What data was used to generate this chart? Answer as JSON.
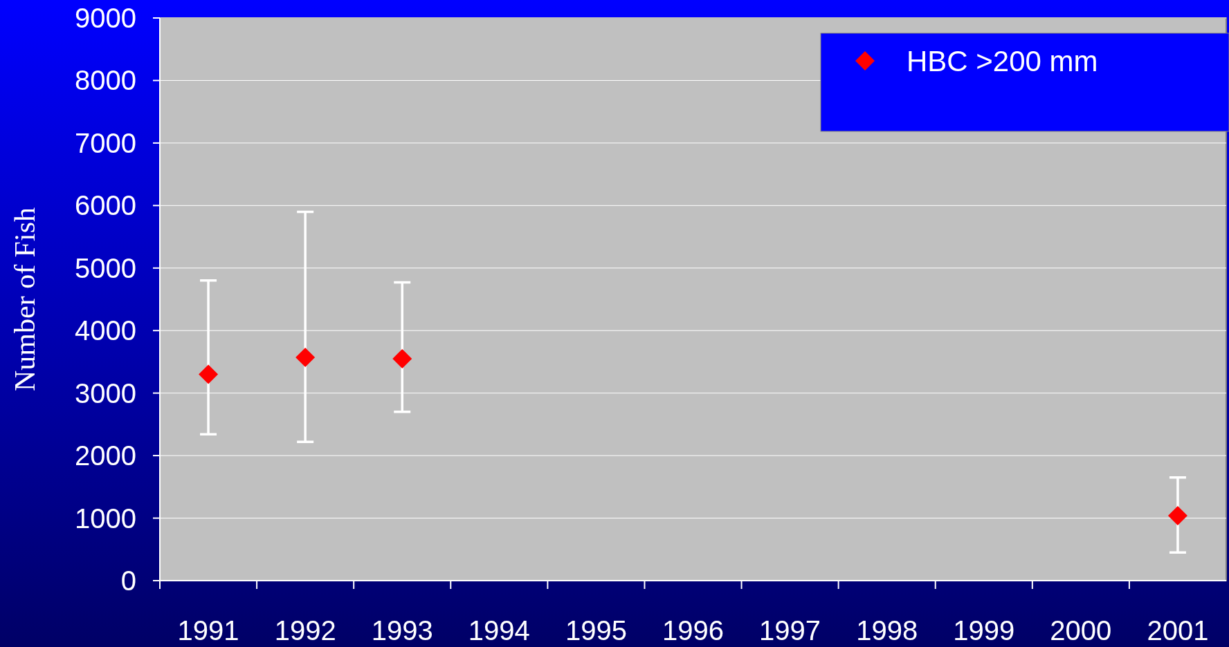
{
  "chart_data": {
    "type": "scatter",
    "ylabel": "Number of Fish",
    "categories": [
      "1991",
      "1992",
      "1993",
      "1994",
      "1995",
      "1996",
      "1997",
      "1998",
      "1999",
      "2000",
      "2001"
    ],
    "series": [
      {
        "name": "HBC >200 mm",
        "color": "#ff0000",
        "values": [
          3300,
          3570,
          3550,
          null,
          null,
          null,
          null,
          null,
          null,
          null,
          1040
        ],
        "errors": [
          [
            2340,
            4800
          ],
          [
            2220,
            5900
          ],
          [
            2700,
            4770
          ],
          null,
          null,
          null,
          null,
          null,
          null,
          null,
          [
            450,
            1650
          ]
        ]
      }
    ],
    "ylim": [
      0,
      9000
    ],
    "yticks": [
      0,
      1000,
      2000,
      3000,
      4000,
      5000,
      6000,
      7000,
      8000,
      9000
    ],
    "grid": "y",
    "legend": "top right",
    "marker": "diamond"
  }
}
